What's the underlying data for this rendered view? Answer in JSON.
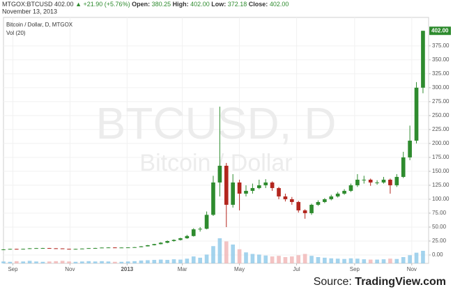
{
  "header": {
    "symbol": "MTGOX:BTCUSD",
    "last": "402.00",
    "direction": "▲",
    "change": "+21.90 (+5.76%)",
    "open_label": "Open:",
    "open": "380.25",
    "high_label": "High:",
    "high": "402.00",
    "low_label": "Low:",
    "low": "372.18",
    "close_label": "Close:",
    "close": "402.00",
    "date": "November 13, 2013"
  },
  "chart_data": {
    "type": "candlestick",
    "legend": "Bitcoin / Dollar, D, MTGOX",
    "indicator": "Vol (20)",
    "watermark": "BTCUSD, D",
    "watermark_subtitle": "Bitcoin / Dollar",
    "source_prefix": "Source:",
    "source_name": "TradingView.com",
    "up_color": "#2e8b2e",
    "down_color": "#b3261e",
    "volume_up_color": "#8cc8e8",
    "volume_down_color": "#f0b4b4",
    "grid": true,
    "last_price": {
      "value": 402,
      "label": "402.00"
    },
    "xlim": [
      0,
      454
    ],
    "xticks": [
      {
        "value": 10,
        "label": "Sep"
      },
      {
        "value": 71,
        "label": "Nov"
      },
      {
        "value": 132,
        "label": "2013"
      },
      {
        "value": 191,
        "label": "Mar"
      },
      {
        "value": 252,
        "label": "May"
      },
      {
        "value": 313,
        "label": "Jul"
      },
      {
        "value": 375,
        "label": "Sep"
      },
      {
        "value": 436,
        "label": "Nov"
      }
    ],
    "ylim": [
      -15,
      426
    ],
    "yticks": [
      {
        "value": 0,
        "label": "0.00"
      },
      {
        "value": 25,
        "label": "25.00"
      },
      {
        "value": 50,
        "label": "50.00"
      },
      {
        "value": 75,
        "label": "75.00"
      },
      {
        "value": 100,
        "label": "100.00"
      },
      {
        "value": 125,
        "label": "125.00"
      },
      {
        "value": 150,
        "label": "150.00"
      },
      {
        "value": 175,
        "label": "175.00"
      },
      {
        "value": 200,
        "label": "200.00"
      },
      {
        "value": 225,
        "label": "225.00"
      },
      {
        "value": 250,
        "label": "250.00"
      },
      {
        "value": 275,
        "label": "275.00"
      },
      {
        "value": 300,
        "label": "300.00"
      },
      {
        "value": 325,
        "label": "325.00"
      },
      {
        "value": 350,
        "label": "350.00"
      },
      {
        "value": 375,
        "label": "375.00"
      }
    ],
    "x": [
      0,
      7,
      14,
      21,
      28,
      35,
      42,
      49,
      56,
      63,
      70,
      77,
      84,
      91,
      98,
      105,
      112,
      119,
      126,
      133,
      140,
      147,
      154,
      161,
      168,
      175,
      182,
      189,
      196,
      203,
      210,
      217,
      224,
      231,
      238,
      245,
      252,
      259,
      266,
      273,
      280,
      287,
      294,
      301,
      308,
      315,
      322,
      329,
      336,
      343,
      350,
      357,
      364,
      371,
      378,
      385,
      392,
      399,
      406,
      413,
      420,
      427,
      434,
      441,
      448
    ],
    "open": [
      9.8,
      10.0,
      10.9,
      10.5,
      11.0,
      12.0,
      12.3,
      12.4,
      12.0,
      11.8,
      11.0,
      10.8,
      10.9,
      11.5,
      12.3,
      12.5,
      13.3,
      13.5,
      13.4,
      13.4,
      13.6,
      14.0,
      15.5,
      17.5,
      19.5,
      22,
      25,
      27,
      30,
      34,
      46,
      47,
      72,
      130,
      160,
      90,
      130,
      110,
      115,
      120,
      125,
      130,
      120,
      105,
      100,
      95,
      80,
      75,
      90,
      95,
      100,
      105,
      110,
      115,
      125,
      135,
      135,
      130,
      130,
      135,
      125,
      140,
      175,
      205,
      300
    ],
    "high": [
      10.4,
      11.2,
      11.1,
      11.3,
      12.3,
      12.6,
      12.7,
      12.6,
      12.2,
      11.9,
      11.2,
      11.1,
      11.7,
      12.5,
      12.8,
      13.5,
      13.8,
      13.7,
      13.6,
      13.8,
      14.3,
      15.8,
      18.0,
      20.0,
      23,
      26,
      28,
      31,
      36,
      48,
      50,
      78,
      142,
      266,
      165,
      145,
      135,
      125,
      128,
      135,
      136,
      132,
      122,
      110,
      104,
      97,
      82,
      92,
      98,
      102,
      108,
      113,
      118,
      128,
      145,
      142,
      137,
      134,
      140,
      137,
      145,
      185,
      232,
      310,
      402
    ],
    "low": [
      9.6,
      9.9,
      10.2,
      10.4,
      10.9,
      11.9,
      12.0,
      11.8,
      11.5,
      10.6,
      10.5,
      10.6,
      10.8,
      11.4,
      12.1,
      12.4,
      13.1,
      13.1,
      13.2,
      13.3,
      13.5,
      13.9,
      15.3,
      17.2,
      19,
      21,
      24,
      26,
      29,
      33,
      42,
      46,
      70,
      105,
      50,
      85,
      80,
      105,
      110,
      118,
      120,
      115,
      100,
      96,
      90,
      76,
      65,
      72,
      88,
      93,
      98,
      103,
      108,
      113,
      122,
      128,
      124,
      126,
      128,
      110,
      122,
      138,
      170,
      200,
      290
    ],
    "close": [
      10.0,
      10.9,
      10.5,
      11.0,
      12.0,
      12.3,
      12.4,
      12.0,
      11.8,
      11.0,
      10.8,
      10.9,
      11.5,
      12.3,
      12.5,
      13.3,
      13.5,
      13.4,
      13.4,
      13.6,
      14.0,
      15.5,
      17.5,
      19.5,
      22,
      25,
      27,
      30,
      34,
      46,
      47,
      72,
      130,
      160,
      90,
      130,
      110,
      115,
      120,
      125,
      130,
      120,
      105,
      100,
      95,
      80,
      75,
      90,
      95,
      100,
      105,
      110,
      115,
      125,
      135,
      135,
      130,
      130,
      135,
      125,
      140,
      175,
      205,
      300,
      402
    ],
    "volume": [
      6,
      5,
      7,
      6,
      8,
      6,
      5,
      6,
      7,
      8,
      6,
      5,
      6,
      7,
      6,
      7,
      6,
      5,
      5,
      6,
      7,
      9,
      10,
      11,
      12,
      11,
      13,
      12,
      15,
      22,
      18,
      28,
      55,
      80,
      70,
      60,
      45,
      35,
      30,
      28,
      25,
      22,
      24,
      20,
      22,
      26,
      30,
      24,
      20,
      18,
      16,
      15,
      14,
      16,
      15,
      13,
      12,
      12,
      13,
      15,
      14,
      20,
      26,
      34,
      40
    ]
  }
}
